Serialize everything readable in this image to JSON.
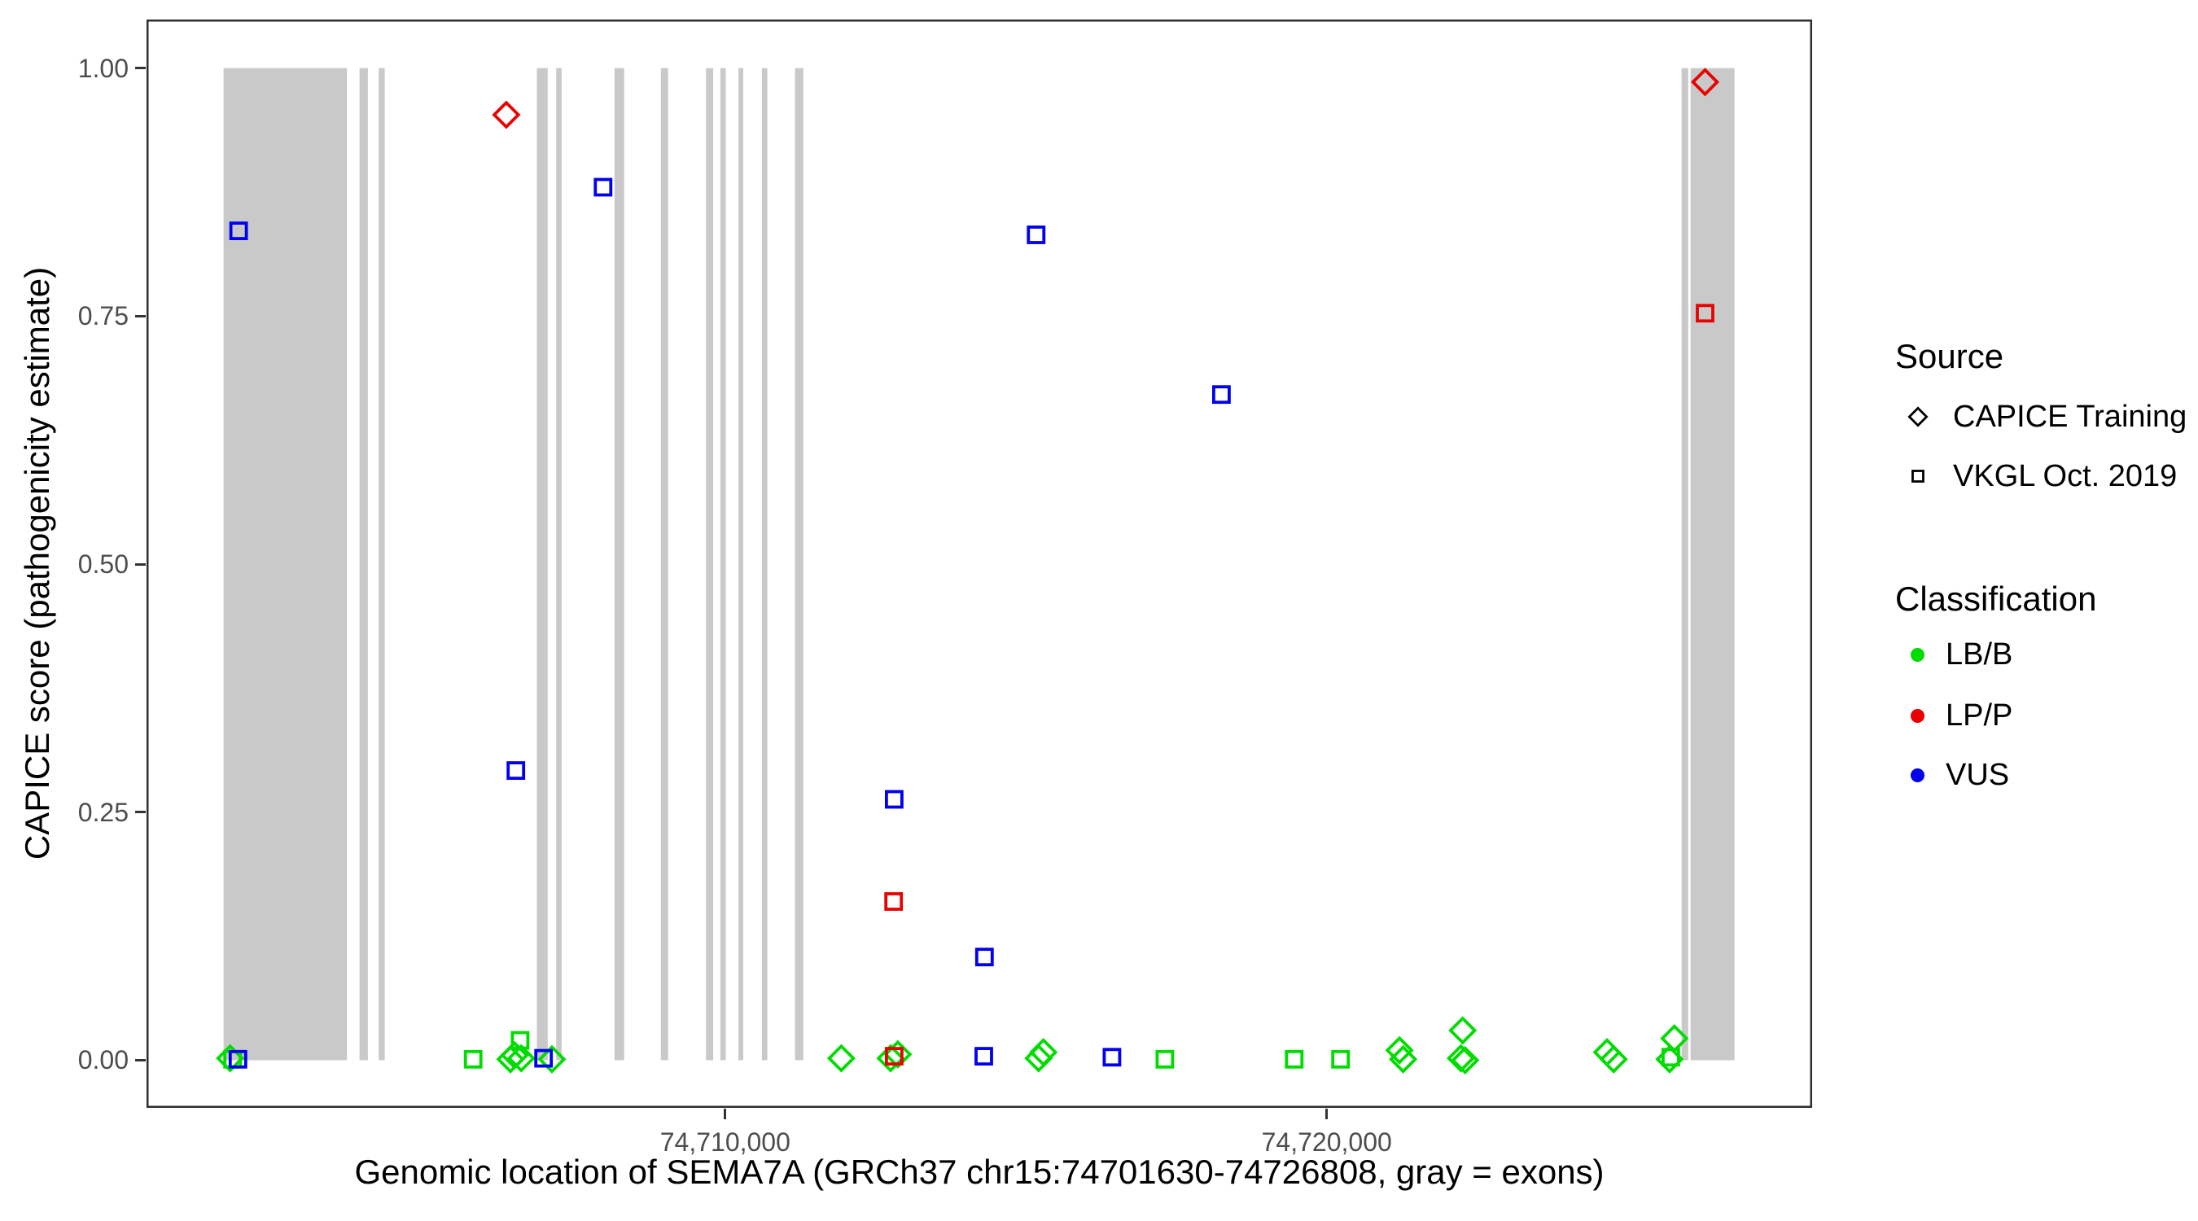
{
  "chart_data": {
    "type": "scatter",
    "title": "",
    "xlabel": "Genomic location of SEMA7A (GRCh37 chr15:74701630-74726808, gray = exons)",
    "ylabel": "CAPICE score (pathogenicity estimate)",
    "gene": "SEMA7A",
    "x_domain": [
      74700380,
      74728070
    ],
    "y_domain": [
      -0.048,
      1.049
    ],
    "x_ticks": [
      {
        "value": 74710000,
        "label": "74,710,000"
      },
      {
        "value": 74720000,
        "label": "74,720,000"
      }
    ],
    "y_ticks": [
      {
        "value": 1.0,
        "label": "1.00"
      },
      {
        "value": 0.75,
        "label": "0.75"
      },
      {
        "value": 0.5,
        "label": "0.50"
      },
      {
        "value": 0.25,
        "label": "0.25"
      },
      {
        "value": 0.0,
        "label": "0.00"
      }
    ],
    "exons_bp": [
      [
        74701660,
        74703710
      ],
      [
        74703920,
        74704060
      ],
      [
        74704240,
        74704340
      ],
      [
        74706870,
        74707050
      ],
      [
        74707190,
        74707280
      ],
      [
        74708160,
        74708320
      ],
      [
        74708930,
        74709050
      ],
      [
        74709680,
        74709800
      ],
      [
        74709920,
        74710010
      ],
      [
        74710220,
        74710300
      ],
      [
        74710610,
        74710700
      ],
      [
        74711160,
        74711300
      ],
      [
        74725900,
        74726010
      ],
      [
        74726050,
        74726780
      ]
    ],
    "points": [
      {
        "bp": 74701770,
        "score": 0.002,
        "source": "CAPICE Training",
        "classification": "LB/B"
      },
      {
        "bp": 74701810,
        "score": 0.001,
        "source": "VKGL Oct. 2019",
        "classification": "LB/B"
      },
      {
        "bp": 74701900,
        "score": 0.001,
        "source": "VKGL Oct. 2019",
        "classification": "VUS"
      },
      {
        "bp": 74701910,
        "score": 0.836,
        "source": "VKGL Oct. 2019",
        "classification": "VUS"
      },
      {
        "bp": 74705810,
        "score": 0.001,
        "source": "VKGL Oct. 2019",
        "classification": "LB/B"
      },
      {
        "bp": 74706360,
        "score": 0.953,
        "source": "CAPICE Training",
        "classification": "LP/P"
      },
      {
        "bp": 74706430,
        "score": 0.001,
        "source": "CAPICE Training",
        "classification": "LB/B"
      },
      {
        "bp": 74706500,
        "score": 0.005,
        "source": "CAPICE Training",
        "classification": "LB/B"
      },
      {
        "bp": 74706520,
        "score": 0.292,
        "source": "VKGL Oct. 2019",
        "classification": "VUS"
      },
      {
        "bp": 74706590,
        "score": 0.02,
        "source": "VKGL Oct. 2019",
        "classification": "LB/B"
      },
      {
        "bp": 74706610,
        "score": 0.002,
        "source": "CAPICE Training",
        "classification": "LB/B"
      },
      {
        "bp": 74706980,
        "score": 0.002,
        "source": "VKGL Oct. 2019",
        "classification": "VUS"
      },
      {
        "bp": 74707120,
        "score": 0.001,
        "source": "CAPICE Training",
        "classification": "LB/B"
      },
      {
        "bp": 74707970,
        "score": 0.88,
        "source": "VKGL Oct. 2019",
        "classification": "VUS"
      },
      {
        "bp": 74711930,
        "score": 0.002,
        "source": "CAPICE Training",
        "classification": "LB/B"
      },
      {
        "bp": 74712750,
        "score": 0.002,
        "source": "CAPICE Training",
        "classification": "LB/B"
      },
      {
        "bp": 74712800,
        "score": 0.16,
        "source": "VKGL Oct. 2019",
        "classification": "LP/P"
      },
      {
        "bp": 74712810,
        "score": 0.263,
        "source": "VKGL Oct. 2019",
        "classification": "VUS"
      },
      {
        "bp": 74712810,
        "score": 0.004,
        "source": "VKGL Oct. 2019",
        "classification": "LP/P"
      },
      {
        "bp": 74712870,
        "score": 0.006,
        "source": "CAPICE Training",
        "classification": "LB/B"
      },
      {
        "bp": 74714300,
        "score": 0.004,
        "source": "VKGL Oct. 2019",
        "classification": "VUS"
      },
      {
        "bp": 74714310,
        "score": 0.104,
        "source": "VKGL Oct. 2019",
        "classification": "VUS"
      },
      {
        "bp": 74715170,
        "score": 0.832,
        "source": "VKGL Oct. 2019",
        "classification": "VUS"
      },
      {
        "bp": 74715210,
        "score": 0.002,
        "source": "CAPICE Training",
        "classification": "LB/B"
      },
      {
        "bp": 74715290,
        "score": 0.008,
        "source": "CAPICE Training",
        "classification": "LB/B"
      },
      {
        "bp": 74716430,
        "score": 0.003,
        "source": "VKGL Oct. 2019",
        "classification": "VUS"
      },
      {
        "bp": 74717310,
        "score": 0.001,
        "source": "VKGL Oct. 2019",
        "classification": "LB/B"
      },
      {
        "bp": 74718250,
        "score": 0.671,
        "source": "VKGL Oct. 2019",
        "classification": "VUS"
      },
      {
        "bp": 74719460,
        "score": 0.001,
        "source": "VKGL Oct. 2019",
        "classification": "LB/B"
      },
      {
        "bp": 74720230,
        "score": 0.001,
        "source": "VKGL Oct. 2019",
        "classification": "LB/B"
      },
      {
        "bp": 74721210,
        "score": 0.01,
        "source": "CAPICE Training",
        "classification": "LB/B"
      },
      {
        "bp": 74721270,
        "score": 0.001,
        "source": "CAPICE Training",
        "classification": "LB/B"
      },
      {
        "bp": 74722230,
        "score": 0.002,
        "source": "CAPICE Training",
        "classification": "LB/B"
      },
      {
        "bp": 74722260,
        "score": 0.03,
        "source": "CAPICE Training",
        "classification": "LB/B"
      },
      {
        "bp": 74722300,
        "score": 0.0,
        "source": "CAPICE Training",
        "classification": "LB/B"
      },
      {
        "bp": 74724660,
        "score": 0.008,
        "source": "CAPICE Training",
        "classification": "LB/B"
      },
      {
        "bp": 74724770,
        "score": 0.001,
        "source": "CAPICE Training",
        "classification": "LB/B"
      },
      {
        "bp": 74725700,
        "score": 0.001,
        "source": "CAPICE Training",
        "classification": "LB/B"
      },
      {
        "bp": 74725720,
        "score": 0.003,
        "source": "VKGL Oct. 2019",
        "classification": "LB/B"
      },
      {
        "bp": 74725780,
        "score": 0.022,
        "source": "CAPICE Training",
        "classification": "LB/B"
      },
      {
        "bp": 74726290,
        "score": 0.753,
        "source": "VKGL Oct. 2019",
        "classification": "LP/P"
      },
      {
        "bp": 74726290,
        "score": 0.986,
        "source": "CAPICE Training",
        "classification": "LP/P"
      }
    ]
  },
  "colors": {
    "LB/B": "#00DC00",
    "LP/P": "#EA0000",
    "VUS": "#0000EE",
    "exon": "#C9C9C9",
    "panel_border": "#2D2D2D",
    "tick_mark": "#333333",
    "tick_label": "#4D4D4D"
  },
  "legend": {
    "source_title": "Source",
    "sources": [
      {
        "label": "CAPICE Training",
        "marker": "diamond"
      },
      {
        "label": "VKGL Oct. 2019",
        "marker": "square"
      }
    ],
    "classification_title": "Classification",
    "classes": [
      {
        "label": "LB/B",
        "color_key": "LB/B"
      },
      {
        "label": "LP/P",
        "color_key": "LP/P"
      },
      {
        "label": "VUS",
        "color_key": "VUS"
      }
    ]
  }
}
